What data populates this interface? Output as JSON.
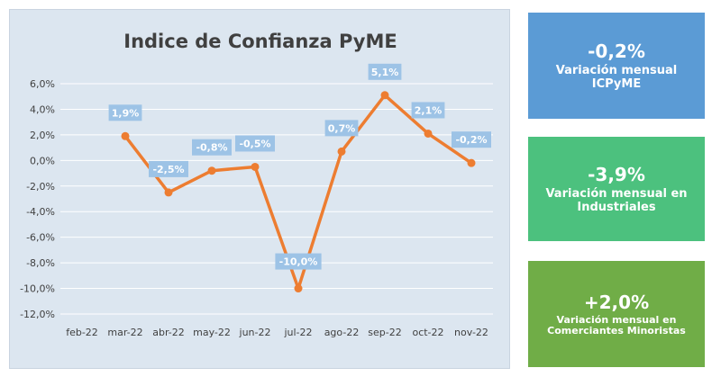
{
  "chart_data": {
    "type": "line",
    "title": "Indice de Confianza PyME",
    "categories": [
      "feb-22",
      "mar-22",
      "abr-22",
      "may-22",
      "jun-22",
      "jul-22",
      "ago-22",
      "sep-22",
      "oct-22",
      "nov-22"
    ],
    "series": [
      {
        "values": [
          null,
          1.9,
          -2.5,
          -0.8,
          -0.5,
          -10.0,
          0.7,
          5.1,
          2.1,
          -0.2
        ],
        "color": "#ed7d31"
      }
    ],
    "data_labels": [
      null,
      "1,9%",
      "-2,5%",
      "-0,8%",
      "-0,5%",
      "-10,0%",
      "0,7%",
      "5,1%",
      "2,1%",
      "-0,2%"
    ],
    "yticks": [
      6,
      4,
      2,
      0,
      -2,
      -4,
      -6,
      -8,
      -10,
      -12
    ],
    "ytick_labels": [
      "6,0%",
      "4,0%",
      "2,0%",
      "0,0%",
      "-2,0%",
      "-4,0%",
      "-6,0%",
      "-8,0%",
      "-10,0%",
      "-12,0%"
    ],
    "ylim": [
      -12,
      6
    ],
    "grid": true,
    "legend": "none",
    "label_box_color": "#9dc3e6"
  },
  "cards": [
    {
      "value": "-0,2%",
      "label": "Variación mensual ICPyME",
      "color": "#5b9bd5"
    },
    {
      "value": "-3,9%",
      "label": "Variación mensual en Industriales",
      "color": "#4cc17e"
    },
    {
      "value": "+2,0%",
      "label": "Variación mensual en Comerciantes Minoristas",
      "color": "#70ad47"
    }
  ]
}
